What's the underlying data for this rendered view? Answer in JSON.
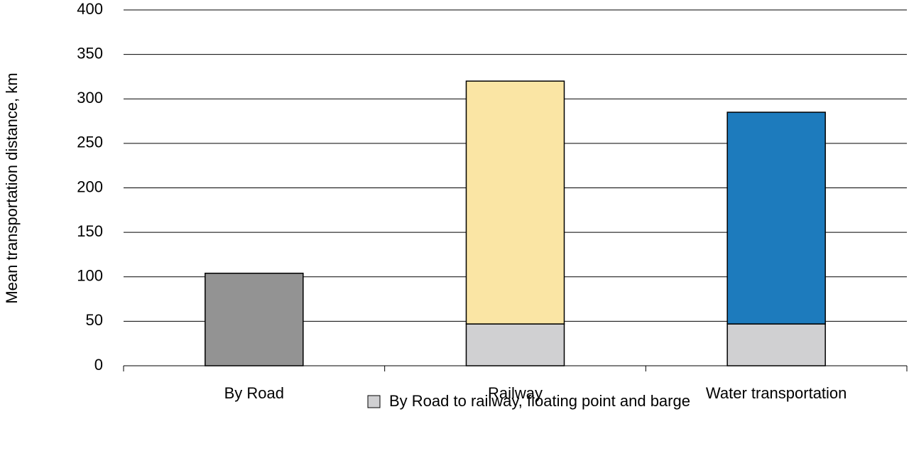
{
  "chart_data": {
    "type": "stacked_bar",
    "y_label": "Mean  transportation distance,  km",
    "categories": [
      "By Road",
      "Railway",
      "Water transportation"
    ],
    "series": [
      {
        "name": "By Road to railway, floating point and barge",
        "color": "#d0d0d2",
        "values": [
          null,
          47,
          47
        ]
      },
      {
        "colors": [
          "#939393",
          "#fae5a4",
          "#1d7bbd"
        ],
        "values": [
          104,
          273,
          238
        ]
      }
    ],
    "ylim": [
      0,
      400
    ],
    "yticks": [
      0,
      50,
      100,
      150,
      200,
      250,
      300,
      350,
      400
    ],
    "grid": true,
    "legend": "bottom"
  }
}
